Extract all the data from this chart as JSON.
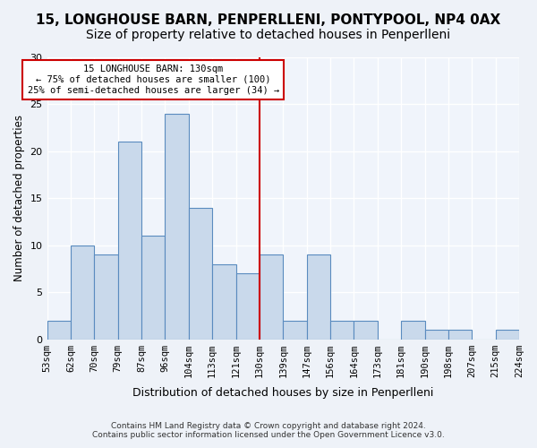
{
  "title": "15, LONGHOUSE BARN, PENPERLLENI, PONTYPOOL, NP4 0AX",
  "subtitle": "Size of property relative to detached houses in Penperlleni",
  "xlabel": "Distribution of detached houses by size in Penperlleni",
  "ylabel": "Number of detached properties",
  "bin_labels": [
    "53sqm",
    "62sqm",
    "70sqm",
    "79sqm",
    "87sqm",
    "96sqm",
    "104sqm",
    "113sqm",
    "121sqm",
    "130sqm",
    "139sqm",
    "147sqm",
    "156sqm",
    "164sqm",
    "173sqm",
    "181sqm",
    "190sqm",
    "198sqm",
    "207sqm",
    "215sqm",
    "224sqm"
  ],
  "bar_heights": [
    2,
    10,
    9,
    21,
    11,
    24,
    14,
    8,
    7,
    9,
    2,
    9,
    2,
    2,
    0,
    2,
    1,
    1,
    0,
    1
  ],
  "bar_color": "#c9d9eb",
  "bar_edge_color": "#5a8bbf",
  "vline_color": "#cc0000",
  "annotation_text": "15 LONGHOUSE BARN: 130sqm\n← 75% of detached houses are smaller (100)\n25% of semi-detached houses are larger (34) →",
  "annotation_box_color": "#cc0000",
  "ylim": [
    0,
    30
  ],
  "yticks": [
    0,
    5,
    10,
    15,
    20,
    25,
    30
  ],
  "footer_text": "Contains HM Land Registry data © Crown copyright and database right 2024.\nContains public sector information licensed under the Open Government Licence v3.0.",
  "bg_color": "#eef2f8",
  "plot_bg_color": "#f0f4fb",
  "grid_color": "#ffffff",
  "title_fontsize": 11,
  "subtitle_fontsize": 10
}
